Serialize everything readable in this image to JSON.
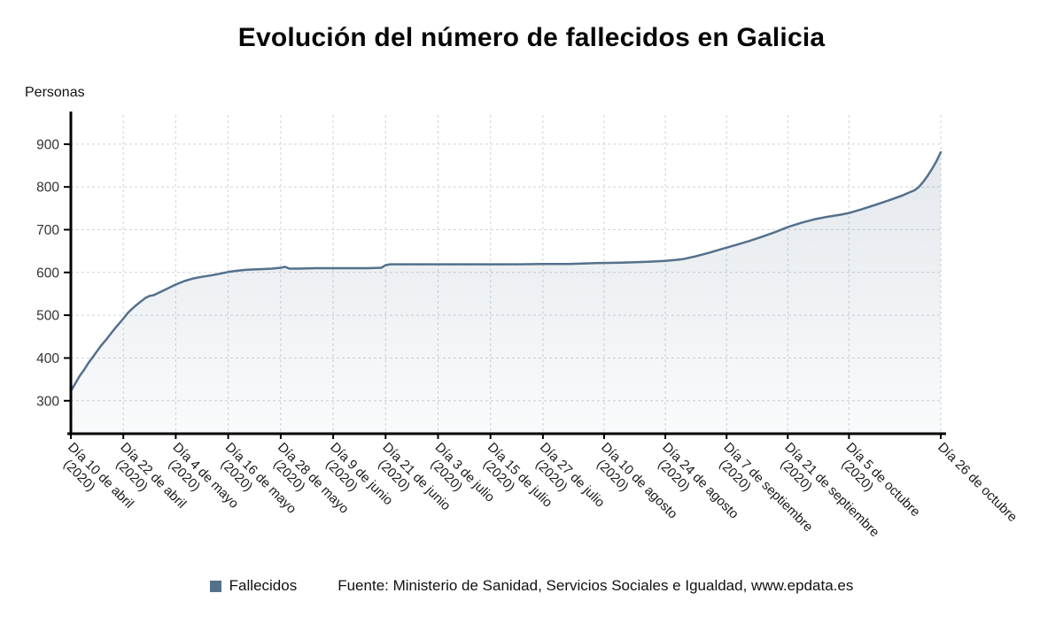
{
  "chart_data": {
    "type": "area",
    "title": "Evolución del número de fallecidos en Galicia",
    "ylabel": "Personas",
    "legend_label": "Fallecidos",
    "source": "Fuente: Ministerio de Sanidad, Servicios Sociales e Igualdad, www.epdata.es",
    "grid": true,
    "colors": {
      "line": "#54718c",
      "area_top": "rgba(84,113,140,0.16)",
      "area_bottom": "rgba(84,113,140,0.03)",
      "grid": "#cfd4da",
      "axis": "#000000",
      "ytick_text": "#333333",
      "xtick_text": "#1a1a1a"
    },
    "y_ticks": [
      300,
      400,
      500,
      600,
      700,
      800,
      900
    ],
    "ylim": [
      223,
      968
    ],
    "x_total_days": 199,
    "x_ticks": [
      {
        "day": 0,
        "label": "Día 10 de abril",
        "sublabel": "(2020)"
      },
      {
        "day": 12,
        "label": "Día 22 de abril",
        "sublabel": "(2020)"
      },
      {
        "day": 24,
        "label": "Día 4 de mayo",
        "sublabel": "(2020)"
      },
      {
        "day": 36,
        "label": "Día 16 de mayo",
        "sublabel": "(2020)"
      },
      {
        "day": 48,
        "label": "Día 28 de mayo",
        "sublabel": "(2020)"
      },
      {
        "day": 60,
        "label": "Día 9 de junio",
        "sublabel": "(2020)"
      },
      {
        "day": 72,
        "label": "Día 21 de junio",
        "sublabel": "(2020)"
      },
      {
        "day": 84,
        "label": "Día 3 de julio",
        "sublabel": "(2020)"
      },
      {
        "day": 96,
        "label": "Día 15 de julio",
        "sublabel": "(2020)"
      },
      {
        "day": 108,
        "label": "Día 27 de julio",
        "sublabel": "(2020)"
      },
      {
        "day": 122,
        "label": "Día 10 de agosto",
        "sublabel": "(2020)"
      },
      {
        "day": 136,
        "label": "Día 24 de agosto",
        "sublabel": "(2020)"
      },
      {
        "day": 150,
        "label": "Día 7 de septiembre",
        "sublabel": "(2020)"
      },
      {
        "day": 164,
        "label": "Día 21 de septiembre",
        "sublabel": "(2020)"
      },
      {
        "day": 178,
        "label": "Día 5 de octubre",
        "sublabel": "(2020)"
      },
      {
        "day": 199,
        "label": "Día 26 de octubre",
        "sublabel": ""
      }
    ],
    "series": [
      {
        "name": "Fallecidos",
        "points": [
          [
            0,
            323
          ],
          [
            1,
            340
          ],
          [
            2,
            358
          ],
          [
            3,
            372
          ],
          [
            4,
            388
          ],
          [
            5,
            402
          ],
          [
            6,
            416
          ],
          [
            7,
            430
          ],
          [
            8,
            442
          ],
          [
            9,
            455
          ],
          [
            10,
            468
          ],
          [
            11,
            480
          ],
          [
            12,
            492
          ],
          [
            13,
            505
          ],
          [
            14,
            515
          ],
          [
            15,
            524
          ],
          [
            16,
            532
          ],
          [
            17,
            540
          ],
          [
            18,
            545
          ],
          [
            19,
            547
          ],
          [
            20,
            552
          ],
          [
            22,
            562
          ],
          [
            24,
            572
          ],
          [
            26,
            580
          ],
          [
            28,
            586
          ],
          [
            30,
            590
          ],
          [
            32,
            593
          ],
          [
            34,
            597
          ],
          [
            36,
            601
          ],
          [
            38,
            604
          ],
          [
            40,
            606
          ],
          [
            42,
            607
          ],
          [
            44,
            608
          ],
          [
            46,
            609
          ],
          [
            48,
            611
          ],
          [
            49,
            613
          ],
          [
            50,
            609
          ],
          [
            52,
            609
          ],
          [
            56,
            610
          ],
          [
            60,
            610
          ],
          [
            64,
            610
          ],
          [
            68,
            610
          ],
          [
            71,
            611
          ],
          [
            72,
            617
          ],
          [
            73,
            619
          ],
          [
            76,
            619
          ],
          [
            80,
            619
          ],
          [
            84,
            619
          ],
          [
            90,
            619
          ],
          [
            96,
            619
          ],
          [
            102,
            619
          ],
          [
            108,
            620
          ],
          [
            114,
            620
          ],
          [
            120,
            622
          ],
          [
            126,
            623
          ],
          [
            132,
            625
          ],
          [
            136,
            627
          ],
          [
            140,
            631
          ],
          [
            143,
            638
          ],
          [
            146,
            646
          ],
          [
            149,
            655
          ],
          [
            152,
            664
          ],
          [
            155,
            673
          ],
          [
            158,
            683
          ],
          [
            161,
            694
          ],
          [
            164,
            706
          ],
          [
            167,
            716
          ],
          [
            170,
            724
          ],
          [
            173,
            730
          ],
          [
            176,
            735
          ],
          [
            178,
            739
          ],
          [
            181,
            748
          ],
          [
            184,
            758
          ],
          [
            187,
            768
          ],
          [
            190,
            779
          ],
          [
            192,
            788
          ],
          [
            193,
            792
          ],
          [
            194,
            800
          ],
          [
            195,
            812
          ],
          [
            196,
            826
          ],
          [
            197,
            842
          ],
          [
            198,
            860
          ],
          [
            199,
            881
          ]
        ]
      }
    ]
  }
}
